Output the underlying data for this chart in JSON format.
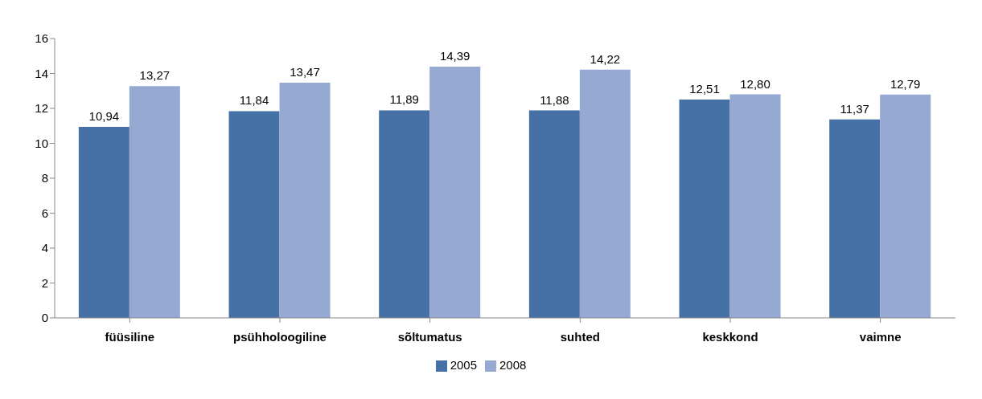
{
  "chart_data": {
    "type": "bar",
    "categories": [
      "füüsiline",
      "psühholoogiline",
      "sõltumatus",
      "suhted",
      "keskkond",
      "vaimne"
    ],
    "series": [
      {
        "name": "2005",
        "color": "#4571a6",
        "values": [
          10.94,
          11.84,
          11.89,
          11.88,
          12.51,
          11.37
        ],
        "value_labels": [
          "10,94",
          "11,84",
          "11,89",
          "11,88",
          "12,51",
          "11,37"
        ]
      },
      {
        "name": "2008",
        "color": "#95a9d2",
        "values": [
          13.27,
          13.47,
          14.39,
          14.22,
          12.8,
          12.79
        ],
        "value_labels": [
          "13,27",
          "13,47",
          "14,39",
          "14,22",
          "12,80",
          "12,79"
        ]
      }
    ],
    "ylim": [
      0,
      16
    ],
    "yticks": [
      0,
      2,
      4,
      6,
      8,
      10,
      12,
      14,
      16
    ],
    "grid": false,
    "legend": "bottom"
  }
}
